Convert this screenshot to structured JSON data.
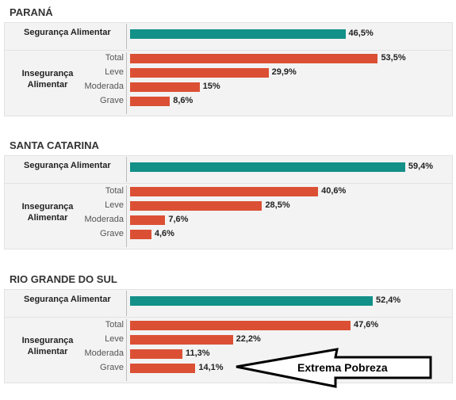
{
  "chart_data": {
    "type": "bar",
    "orientation": "horizontal",
    "colors": {
      "security": "#139088",
      "insecurity": "#db5034"
    },
    "regions": [
      {
        "name": "PARANÁ",
        "security": {
          "label": "Segurança Alimentar",
          "value": 46.5,
          "display": "46,5%"
        },
        "insecurity": {
          "label": "Insegurança Alimentar",
          "categories": [
            "Total",
            "Leve",
            "Moderada",
            "Grave"
          ],
          "values": [
            53.5,
            29.9,
            15,
            8.6
          ],
          "displays": [
            "53,5%",
            "29,9%",
            "15%",
            "8,6%"
          ]
        }
      },
      {
        "name": "SANTA CATARINA",
        "security": {
          "label": "Segurança Alimentar",
          "value": 59.4,
          "display": "59,4%"
        },
        "insecurity": {
          "label": "Insegurança Alimentar",
          "categories": [
            "Total",
            "Leve",
            "Moderada",
            "Grave"
          ],
          "values": [
            40.6,
            28.5,
            7.6,
            4.6
          ],
          "displays": [
            "40,6%",
            "28,5%",
            "7,6%",
            "4,6%"
          ]
        }
      },
      {
        "name": "RIO GRANDE DO SUL",
        "security": {
          "label": "Segurança Alimentar",
          "value": 52.4,
          "display": "52,4%"
        },
        "insecurity": {
          "label": "Insegurança Alimentar",
          "categories": [
            "Total",
            "Leve",
            "Moderada",
            "Grave"
          ],
          "values": [
            47.6,
            22.2,
            11.3,
            14.1
          ],
          "displays": [
            "47,6%",
            "22,2%",
            "11,3%",
            "14,1%"
          ]
        }
      }
    ],
    "annotation": {
      "text": "Extrema Pobreza",
      "points_to": "RIO GRANDE DO SUL - Grave"
    }
  }
}
